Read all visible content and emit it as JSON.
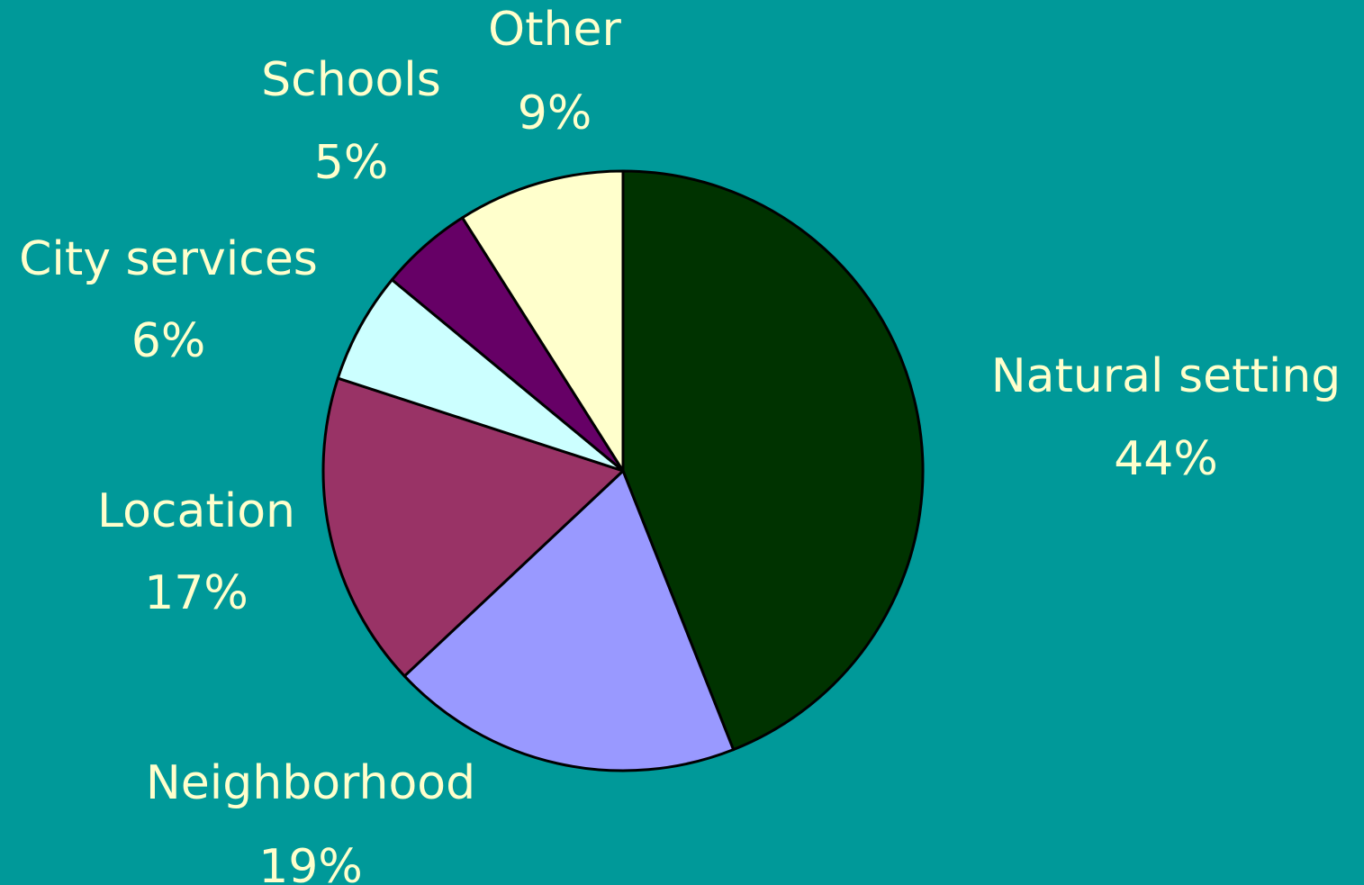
{
  "chart_data": {
    "type": "pie",
    "title": "",
    "start_angle_deg": 0,
    "direction": "clockwise",
    "slices": [
      {
        "label": "Natural setting",
        "value": 44,
        "percent_label": "44%",
        "color": "#003300"
      },
      {
        "label": "Neighborhood",
        "value": 19,
        "percent_label": "19%",
        "color": "#9999ff"
      },
      {
        "label": "Location",
        "value": 17,
        "percent_label": "17%",
        "color": "#993366"
      },
      {
        "label": "City services",
        "value": 6,
        "percent_label": "6%",
        "color": "#ccffff"
      },
      {
        "label": "Schools",
        "value": 5,
        "percent_label": "5%",
        "color": "#660066"
      },
      {
        "label": "Other",
        "value": 9,
        "percent_label": "9%",
        "color": "#ffffcc"
      }
    ]
  },
  "colors": {
    "background": "#009999",
    "label_text": "#ffffcc",
    "outline": "#000000"
  }
}
